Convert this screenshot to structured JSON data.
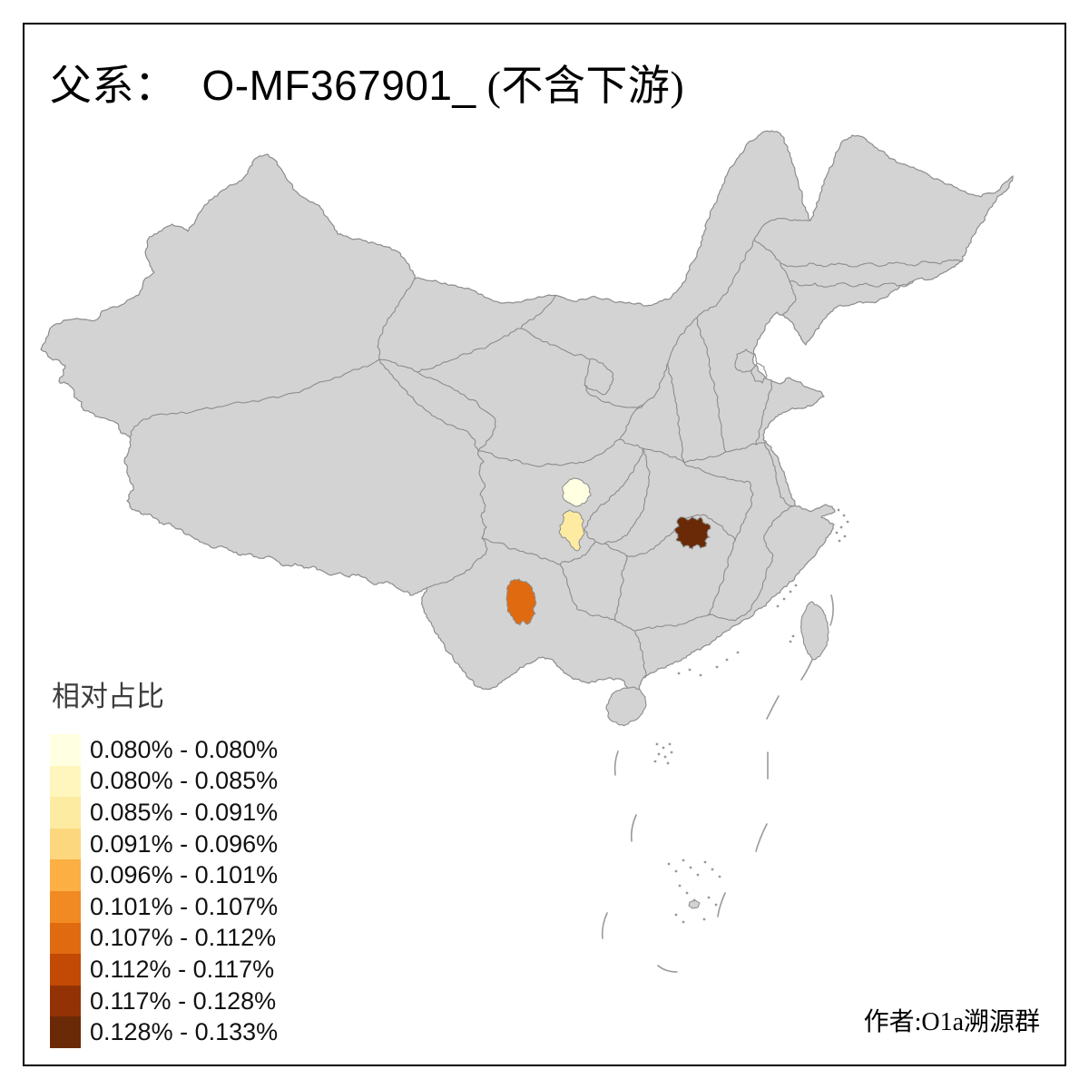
{
  "page": {
    "background": "#FFFFFF",
    "frame_color": "#000000"
  },
  "title": {
    "prefix": "父系：",
    "code": "O-MF367901_",
    "suffix": "(不含下游)"
  },
  "legend": {
    "title": "相对占比",
    "classes": [
      {
        "label": "0.080% - 0.080%",
        "color": "#FFFFE2"
      },
      {
        "label": "0.080% - 0.085%",
        "color": "#FFF6BE"
      },
      {
        "label": "0.085% - 0.091%",
        "color": "#FDEBA2"
      },
      {
        "label": "0.091% - 0.096%",
        "color": "#FDD77E"
      },
      {
        "label": "0.096% - 0.101%",
        "color": "#FCAF42"
      },
      {
        "label": "0.101% - 0.107%",
        "color": "#F28A23"
      },
      {
        "label": "0.107% - 0.112%",
        "color": "#E06A10"
      },
      {
        "label": "0.112% - 0.117%",
        "color": "#C24A04"
      },
      {
        "label": "0.117% - 0.128%",
        "color": "#933305"
      },
      {
        "label": "0.128% - 0.133%",
        "color": "#6B2A07"
      }
    ]
  },
  "attribution": "作者:O1a溯源群",
  "map": {
    "land_color": "#D3D3D3",
    "border_color": "#8C8C8C",
    "sea_mark_color": "#9A9A9A",
    "highlighted_regions": [
      {
        "id": "region-1",
        "value_range": "0.080% - 0.080%",
        "color": "#FFFFE2"
      },
      {
        "id": "region-2",
        "value_range": "0.085% - 0.091%",
        "color": "#FDEBA2"
      },
      {
        "id": "region-3",
        "value_range": "0.107% - 0.112%",
        "color": "#E06A10"
      },
      {
        "id": "region-4",
        "value_range": "0.128% - 0.133%",
        "color": "#6B2A07"
      }
    ]
  }
}
